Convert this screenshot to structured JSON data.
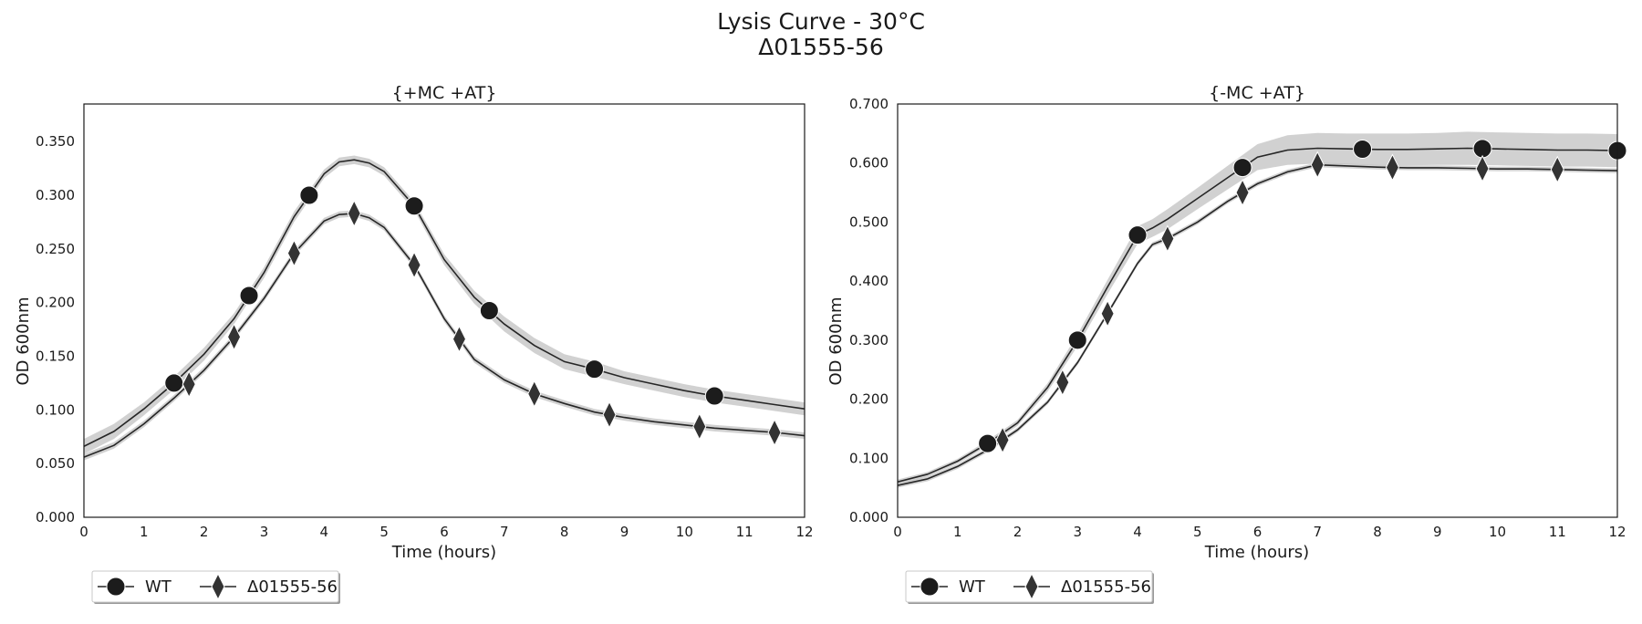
{
  "figure": {
    "title_line1": "Lysis Curve - 30°C",
    "title_line2": "Δ01555-56"
  },
  "chart_data": [
    {
      "type": "line",
      "title": "{+MC +AT}",
      "xlabel": "Time (hours)",
      "ylabel": "OD 600nm",
      "xlim": [
        0,
        12
      ],
      "ylim": [
        0,
        0.385
      ],
      "xticks": [
        "0",
        "1",
        "2",
        "3",
        "4",
        "5",
        "6",
        "7",
        "8",
        "9",
        "10",
        "11",
        "12"
      ],
      "yticks": [
        "0.000",
        "0.050",
        "0.100",
        "0.150",
        "0.200",
        "0.250",
        "0.300",
        "0.350"
      ],
      "grid": false,
      "legend_position": "bottom-left, below axes",
      "x": [
        0,
        0.5,
        1,
        1.5,
        2,
        2.5,
        3,
        3.5,
        4,
        4.25,
        4.5,
        4.75,
        5,
        5.5,
        6,
        6.5,
        7,
        7.5,
        8,
        8.5,
        9,
        9.5,
        10,
        10.5,
        11,
        11.5,
        12
      ],
      "series": [
        {
          "name": "WT",
          "marker": "circle",
          "values": [
            0.066,
            0.08,
            0.101,
            0.125,
            0.152,
            0.185,
            0.228,
            0.28,
            0.32,
            0.331,
            0.333,
            0.33,
            0.322,
            0.29,
            0.24,
            0.205,
            0.18,
            0.16,
            0.145,
            0.138,
            0.13,
            0.124,
            0.118,
            0.113,
            0.109,
            0.105,
            0.101
          ],
          "band": [
            0.007,
            0.007,
            0.006,
            0.006,
            0.006,
            0.005,
            0.005,
            0.005,
            0.004,
            0.004,
            0.004,
            0.004,
            0.004,
            0.004,
            0.005,
            0.006,
            0.007,
            0.007,
            0.007,
            0.007,
            0.006,
            0.006,
            0.006,
            0.006,
            0.006,
            0.006,
            0.006
          ],
          "markers_x": [
            1.5,
            2.75,
            3.75,
            5.5,
            6.75,
            8.5,
            10.5
          ]
        },
        {
          "name": "Δ01555-56",
          "marker": "diamond",
          "values": [
            0.056,
            0.067,
            0.087,
            0.111,
            0.137,
            0.168,
            0.204,
            0.246,
            0.276,
            0.282,
            0.283,
            0.279,
            0.27,
            0.235,
            0.185,
            0.147,
            0.128,
            0.115,
            0.106,
            0.098,
            0.093,
            0.089,
            0.086,
            0.083,
            0.081,
            0.079,
            0.076
          ],
          "band": [
            0.003,
            0.003,
            0.003,
            0.003,
            0.003,
            0.003,
            0.003,
            0.003,
            0.003,
            0.003,
            0.003,
            0.003,
            0.003,
            0.003,
            0.003,
            0.003,
            0.003,
            0.003,
            0.003,
            0.003,
            0.003,
            0.003,
            0.003,
            0.003,
            0.003,
            0.003,
            0.003
          ],
          "markers_x": [
            1.75,
            2.5,
            3.5,
            4.5,
            5.5,
            6.25,
            7.5,
            8.75,
            10.25,
            11.5
          ]
        }
      ]
    },
    {
      "type": "line",
      "title": "{-MC +AT}",
      "xlabel": "Time (hours)",
      "ylabel": "OD 600nm",
      "xlim": [
        0,
        12
      ],
      "ylim": [
        0,
        0.7
      ],
      "xticks": [
        "0",
        "1",
        "2",
        "3",
        "4",
        "5",
        "6",
        "7",
        "8",
        "9",
        "10",
        "11",
        "12"
      ],
      "yticks": [
        "0.000",
        "0.100",
        "0.200",
        "0.300",
        "0.400",
        "0.500",
        "0.600",
        "0.700"
      ],
      "grid": false,
      "legend_position": "bottom-left, below axes",
      "x": [
        0,
        0.5,
        1,
        1.5,
        2,
        2.5,
        3,
        3.5,
        4,
        4.25,
        4.5,
        5,
        5.5,
        6,
        6.5,
        7,
        7.5,
        8,
        8.5,
        9,
        9.5,
        10,
        10.5,
        11,
        11.5,
        12
      ],
      "series": [
        {
          "name": "WT",
          "marker": "circle",
          "values": [
            0.06,
            0.073,
            0.095,
            0.125,
            0.16,
            0.22,
            0.3,
            0.39,
            0.478,
            0.49,
            0.505,
            0.54,
            0.575,
            0.61,
            0.622,
            0.625,
            0.624,
            0.623,
            0.623,
            0.624,
            0.625,
            0.624,
            0.623,
            0.622,
            0.622,
            0.621
          ],
          "band": [
            0.004,
            0.004,
            0.004,
            0.005,
            0.005,
            0.007,
            0.01,
            0.012,
            0.015,
            0.015,
            0.017,
            0.018,
            0.02,
            0.022,
            0.025,
            0.026,
            0.026,
            0.027,
            0.027,
            0.027,
            0.028,
            0.028,
            0.028,
            0.028,
            0.028,
            0.028
          ],
          "markers_x": [
            1.5,
            3.0,
            4.0,
            5.75,
            7.75,
            9.75,
            12.0
          ]
        },
        {
          "name": "Δ01555-56",
          "marker": "diamond",
          "values": [
            0.054,
            0.065,
            0.086,
            0.114,
            0.148,
            0.195,
            0.262,
            0.345,
            0.43,
            0.462,
            0.472,
            0.5,
            0.535,
            0.565,
            0.585,
            0.597,
            0.595,
            0.593,
            0.592,
            0.592,
            0.591,
            0.59,
            0.59,
            0.589,
            0.588,
            0.587
          ],
          "band": [
            0.004,
            0.004,
            0.004,
            0.004,
            0.004,
            0.004,
            0.004,
            0.004,
            0.004,
            0.004,
            0.004,
            0.004,
            0.004,
            0.004,
            0.004,
            0.004,
            0.004,
            0.004,
            0.004,
            0.004,
            0.004,
            0.004,
            0.004,
            0.004,
            0.004,
            0.004
          ],
          "markers_x": [
            1.75,
            2.75,
            3.5,
            4.5,
            5.75,
            7.0,
            8.25,
            9.75,
            11.0
          ]
        }
      ]
    }
  ]
}
